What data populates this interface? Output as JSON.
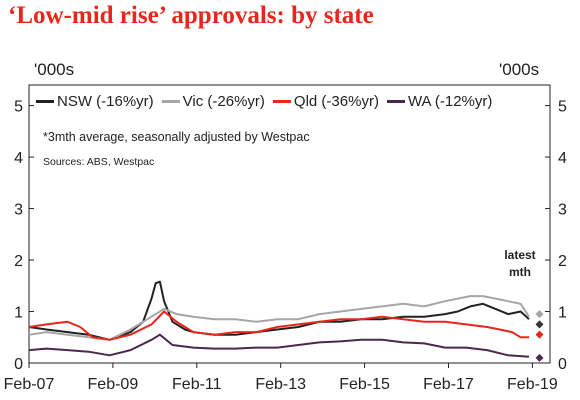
{
  "title": "‘Low-mid rise’ approvals: by state",
  "unit_left": "'000s",
  "unit_right": "'000s",
  "note": "*3mth average, seasonally adjusted by Westpac",
  "sources": "Sources: ABS, Westpac",
  "latest_label_line1": "latest",
  "latest_label_line2": "mth",
  "chart_data": {
    "type": "line",
    "xlim": [
      2007.08,
      2019.5
    ],
    "ylim": [
      0,
      5.4
    ],
    "yticks": [
      "0",
      "1",
      "2",
      "3",
      "4",
      "5"
    ],
    "xticks": [
      {
        "label": "Feb-07",
        "x": 2007.08
      },
      {
        "label": "Feb-09",
        "x": 2009.08
      },
      {
        "label": "Feb-11",
        "x": 2011.08
      },
      {
        "label": "Feb-13",
        "x": 2013.08
      },
      {
        "label": "Feb-15",
        "x": 2015.08
      },
      {
        "label": "Feb-17",
        "x": 2017.08
      },
      {
        "label": "Feb-19",
        "x": 2019.08
      }
    ],
    "legend_placement": "top",
    "series": [
      {
        "name": "NSW (-16%yr)",
        "color": "#222222",
        "x": [
          2007.08,
          2007.5,
          2008.0,
          2008.5,
          2009.0,
          2009.5,
          2009.8,
          2010.0,
          2010.1,
          2010.2,
          2010.3,
          2010.5,
          2010.8,
          2011.0,
          2011.5,
          2012.0,
          2012.5,
          2013.0,
          2013.5,
          2014.0,
          2014.5,
          2015.0,
          2015.5,
          2016.0,
          2016.5,
          2017.0,
          2017.3,
          2017.6,
          2017.9,
          2018.2,
          2018.5,
          2018.8,
          2019.0
        ],
        "y": [
          0.7,
          0.65,
          0.6,
          0.55,
          0.45,
          0.6,
          0.8,
          1.25,
          1.55,
          1.58,
          1.2,
          0.8,
          0.65,
          0.6,
          0.55,
          0.55,
          0.6,
          0.65,
          0.7,
          0.8,
          0.8,
          0.85,
          0.85,
          0.9,
          0.9,
          0.95,
          1.0,
          1.1,
          1.15,
          1.05,
          0.95,
          1.0,
          0.85
        ]
      },
      {
        "name": "Vic (-26%yr)",
        "color": "#a6a6a6",
        "x": [
          2007.08,
          2007.5,
          2008.0,
          2008.5,
          2009.0,
          2009.5,
          2010.0,
          2010.3,
          2010.6,
          2011.0,
          2011.5,
          2012.0,
          2012.5,
          2013.0,
          2013.5,
          2014.0,
          2014.5,
          2015.0,
          2015.5,
          2016.0,
          2016.5,
          2017.0,
          2017.3,
          2017.6,
          2017.9,
          2018.2,
          2018.5,
          2018.8,
          2019.0
        ],
        "y": [
          0.55,
          0.6,
          0.55,
          0.5,
          0.45,
          0.65,
          0.9,
          1.05,
          0.95,
          0.9,
          0.85,
          0.85,
          0.8,
          0.85,
          0.85,
          0.95,
          1.0,
          1.05,
          1.1,
          1.15,
          1.1,
          1.2,
          1.25,
          1.3,
          1.3,
          1.25,
          1.2,
          1.15,
          0.9
        ]
      },
      {
        "name": "Qld (-36%yr)",
        "color": "#e8261c",
        "x": [
          2007.08,
          2007.5,
          2008.0,
          2008.3,
          2008.6,
          2009.0,
          2009.5,
          2010.0,
          2010.3,
          2010.6,
          2011.0,
          2011.5,
          2012.0,
          2012.5,
          2013.0,
          2013.5,
          2014.0,
          2014.5,
          2015.0,
          2015.5,
          2016.0,
          2016.5,
          2017.0,
          2017.5,
          2018.0,
          2018.3,
          2018.6,
          2018.8,
          2019.0
        ],
        "y": [
          0.7,
          0.75,
          0.8,
          0.7,
          0.5,
          0.45,
          0.55,
          0.75,
          1.0,
          0.8,
          0.6,
          0.55,
          0.6,
          0.6,
          0.7,
          0.75,
          0.8,
          0.85,
          0.85,
          0.9,
          0.85,
          0.8,
          0.8,
          0.75,
          0.7,
          0.65,
          0.6,
          0.5,
          0.5
        ]
      },
      {
        "name": "WA (-12%yr)",
        "color": "#4d2650",
        "x": [
          2007.08,
          2007.5,
          2008.0,
          2008.5,
          2009.0,
          2009.5,
          2010.0,
          2010.2,
          2010.5,
          2011.0,
          2011.5,
          2012.0,
          2012.5,
          2013.0,
          2013.5,
          2014.0,
          2014.5,
          2015.0,
          2015.5,
          2016.0,
          2016.5,
          2017.0,
          2017.5,
          2018.0,
          2018.5,
          2019.0
        ],
        "y": [
          0.25,
          0.28,
          0.25,
          0.22,
          0.15,
          0.25,
          0.45,
          0.55,
          0.35,
          0.3,
          0.28,
          0.28,
          0.3,
          0.3,
          0.35,
          0.4,
          0.42,
          0.45,
          0.45,
          0.4,
          0.38,
          0.3,
          0.3,
          0.25,
          0.15,
          0.12
        ]
      }
    ],
    "latest": [
      {
        "name": "Vic",
        "x": 2019.25,
        "y": 0.95,
        "color": "#a6a6a6"
      },
      {
        "name": "NSW",
        "x": 2019.25,
        "y": 0.75,
        "color": "#333333"
      },
      {
        "name": "Qld",
        "x": 2019.25,
        "y": 0.55,
        "color": "#e8261c"
      },
      {
        "name": "WA",
        "x": 2019.25,
        "y": 0.1,
        "color": "#4d2650"
      }
    ]
  }
}
